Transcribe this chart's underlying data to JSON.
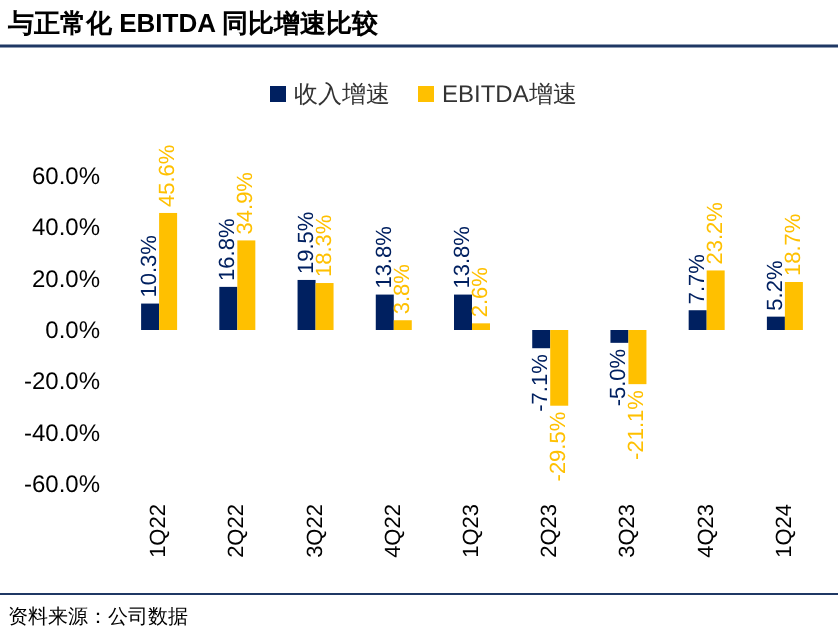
{
  "chart_data": {
    "type": "bar",
    "title": "与正常化 EBITDA 同比增速比较",
    "categories": [
      "1Q22",
      "2Q22",
      "3Q22",
      "4Q22",
      "1Q23",
      "2Q23",
      "3Q23",
      "4Q23",
      "1Q24"
    ],
    "series": [
      {
        "name": "收入增速",
        "color": "#002060",
        "values": [
          10.3,
          16.8,
          19.5,
          13.8,
          13.8,
          -7.1,
          -5.0,
          7.7,
          5.2
        ],
        "value_labels": [
          "10.3%",
          "16.8%",
          "19.5%",
          "13.8%",
          "13.8%",
          "-7.1%",
          "-5.0%",
          "7.7%",
          "5.2%"
        ]
      },
      {
        "name": "EBITDA增速",
        "color": "#ffc000",
        "values": [
          45.6,
          34.9,
          18.3,
          3.8,
          2.6,
          -29.5,
          -21.1,
          23.2,
          18.7
        ],
        "value_labels": [
          "45.6%",
          "34.9%",
          "18.3%",
          "3.8%",
          "2.6%",
          "-29.5%",
          "-21.1%",
          "23.2%",
          "18.7%"
        ]
      }
    ],
    "ylim": [
      -60,
      60
    ],
    "yticks": [
      {
        "value": -60,
        "label": "-60.0%"
      },
      {
        "value": -40,
        "label": "-40.0%"
      },
      {
        "value": -20,
        "label": "-20.0%"
      },
      {
        "value": 0,
        "label": "0.0%"
      },
      {
        "value": 20,
        "label": "20.0%"
      },
      {
        "value": 40,
        "label": "40.0%"
      },
      {
        "value": 60,
        "label": "60.0%"
      }
    ],
    "legend": "top",
    "grid": false,
    "annotations": [
      "资料来源：公司数据"
    ]
  }
}
